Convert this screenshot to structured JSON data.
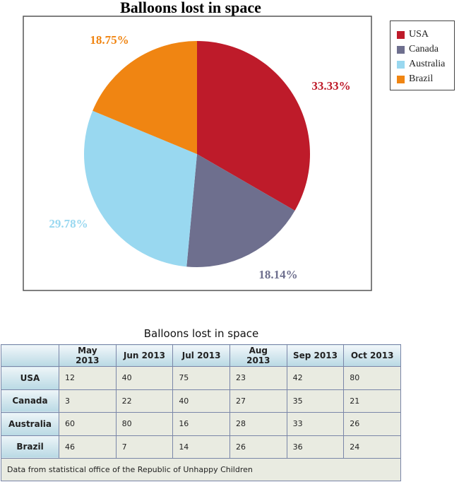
{
  "chart_data": [
    {
      "type": "pie",
      "title": "Balloons lost in space",
      "categories": [
        "USA",
        "Canada",
        "Australia",
        "Brazil"
      ],
      "values": [
        33.33,
        18.14,
        29.78,
        18.75
      ],
      "labels": [
        "33.33%",
        "18.14%",
        "29.78%",
        "18.75%"
      ],
      "colors": [
        "#be1b2a",
        "#6e6f8e",
        "#99d8f0",
        "#f08512"
      ],
      "legend": "right"
    },
    {
      "type": "table",
      "title": "Balloons lost in space",
      "columns": [
        "May 2013",
        "Jun 2013",
        "Jul 2013",
        "Aug 2013",
        "Sep 2013",
        "Oct 2013"
      ],
      "rows": [
        {
          "name": "USA",
          "values": [
            "12",
            "40",
            "75",
            "23",
            "42",
            "80"
          ]
        },
        {
          "name": "Canada",
          "values": [
            "3",
            "22",
            "40",
            "27",
            "35",
            "21"
          ]
        },
        {
          "name": "Australia",
          "values": [
            "60",
            "80",
            "16",
            "28",
            "33",
            "26"
          ]
        },
        {
          "name": "Brazil",
          "values": [
            "46",
            "7",
            "14",
            "26",
            "36",
            "24"
          ]
        }
      ],
      "footer": "Data from statistical office of the Republic of Unhappy Children"
    }
  ]
}
